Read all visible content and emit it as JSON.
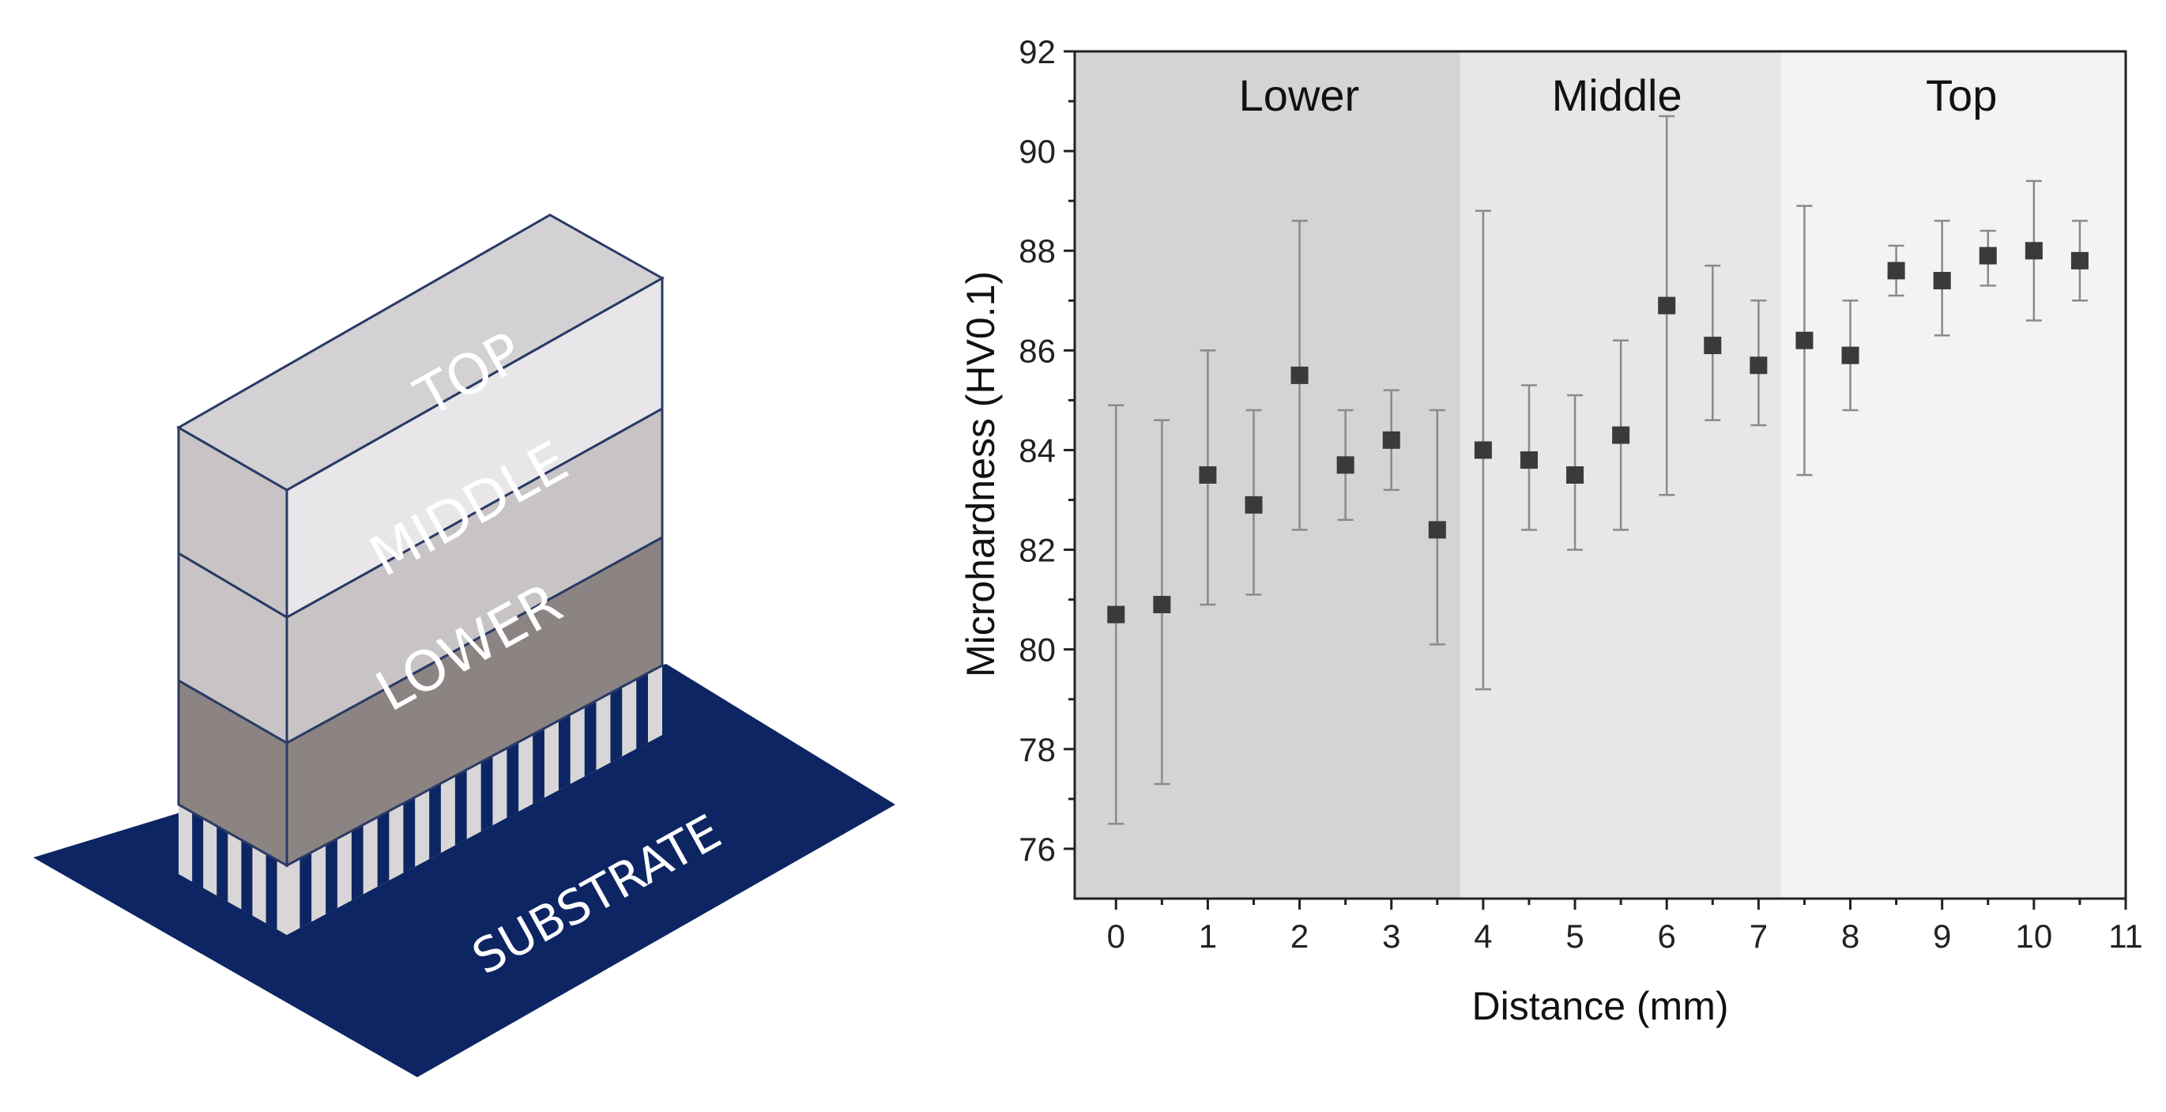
{
  "diagram": {
    "layers": [
      {
        "label": "TOP",
        "color": "#e8e6e9"
      },
      {
        "label": "MIDDLE",
        "color": "#c8c4c5"
      },
      {
        "label": "LOWER",
        "color": "#8c8482"
      }
    ],
    "substrate": {
      "label": "SUBSTRATE",
      "color": "#0d2663"
    },
    "outline_color": "#2a3a66"
  },
  "chart_data": {
    "type": "scatter",
    "title": "",
    "xlabel": "Distance (mm)",
    "ylabel": "Microhardness (HV0.1)",
    "xlim": [
      -0.45,
      11
    ],
    "ylim": [
      75,
      92
    ],
    "xticks": [
      "0",
      "1",
      "2",
      "3",
      "4",
      "5",
      "6",
      "7",
      "8",
      "9",
      "10",
      "11"
    ],
    "yticks": [
      "76",
      "78",
      "80",
      "82",
      "84",
      "86",
      "88",
      "90",
      "92"
    ],
    "regions": [
      {
        "label": "Lower",
        "x_start": -0.45,
        "x_end": 3.75,
        "color": "#d6d3d4"
      },
      {
        "label": "Middle",
        "x_start": 3.75,
        "x_end": 7.25,
        "color": "#e8e7e7"
      },
      {
        "label": "Top",
        "x_start": 7.25,
        "x_end": 11,
        "color": "#f3f3f3"
      }
    ],
    "marker_color": "#3a3a3a",
    "errorbar_color": "#8a8a8a",
    "points": [
      {
        "x": 0,
        "y": 80.7,
        "y_low": 76.5,
        "y_high": 84.9
      },
      {
        "x": 0.5,
        "y": 80.9,
        "y_low": 77.3,
        "y_high": 84.6
      },
      {
        "x": 1,
        "y": 83.5,
        "y_low": 80.9,
        "y_high": 86.0
      },
      {
        "x": 1.5,
        "y": 82.9,
        "y_low": 81.1,
        "y_high": 84.8
      },
      {
        "x": 2,
        "y": 85.5,
        "y_low": 82.4,
        "y_high": 88.6
      },
      {
        "x": 2.5,
        "y": 83.7,
        "y_low": 82.6,
        "y_high": 84.8
      },
      {
        "x": 3,
        "y": 84.2,
        "y_low": 83.2,
        "y_high": 85.2
      },
      {
        "x": 3.5,
        "y": 82.4,
        "y_low": 80.1,
        "y_high": 84.8
      },
      {
        "x": 4,
        "y": 84.0,
        "y_low": 79.2,
        "y_high": 88.8
      },
      {
        "x": 4.5,
        "y": 83.8,
        "y_low": 82.4,
        "y_high": 85.3
      },
      {
        "x": 5,
        "y": 83.5,
        "y_low": 82.0,
        "y_high": 85.1
      },
      {
        "x": 5.5,
        "y": 84.3,
        "y_low": 82.4,
        "y_high": 86.2
      },
      {
        "x": 6,
        "y": 86.9,
        "y_low": 83.1,
        "y_high": 90.7
      },
      {
        "x": 6.5,
        "y": 86.1,
        "y_low": 84.6,
        "y_high": 87.7
      },
      {
        "x": 7,
        "y": 85.7,
        "y_low": 84.5,
        "y_high": 87.0
      },
      {
        "x": 7.5,
        "y": 86.2,
        "y_low": 83.5,
        "y_high": 88.9
      },
      {
        "x": 8,
        "y": 85.9,
        "y_low": 84.8,
        "y_high": 87.0
      },
      {
        "x": 8.5,
        "y": 87.6,
        "y_low": 87.1,
        "y_high": 88.1
      },
      {
        "x": 9,
        "y": 87.4,
        "y_low": 86.3,
        "y_high": 88.6
      },
      {
        "x": 9.5,
        "y": 87.9,
        "y_low": 87.3,
        "y_high": 88.4
      },
      {
        "x": 10,
        "y": 88.0,
        "y_low": 86.6,
        "y_high": 89.4
      },
      {
        "x": 10.5,
        "y": 87.8,
        "y_low": 87.0,
        "y_high": 88.6
      }
    ]
  }
}
